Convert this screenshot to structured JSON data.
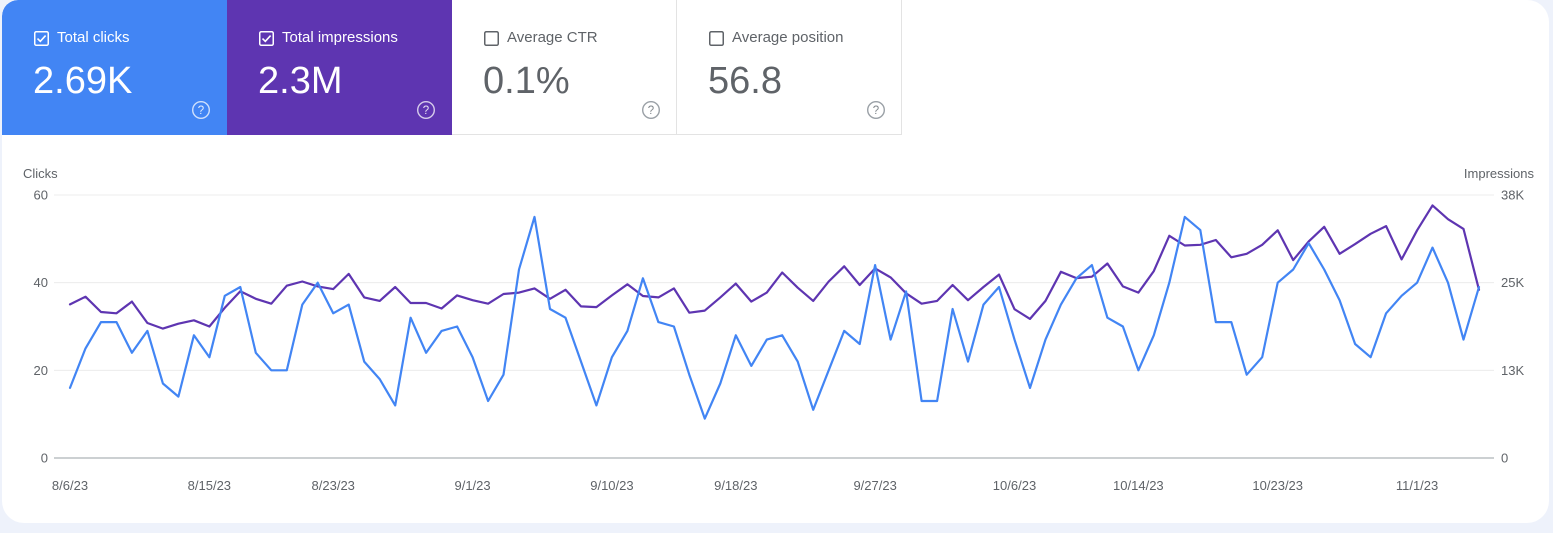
{
  "metrics": [
    {
      "label": "Total clicks",
      "value": "2.69K",
      "checked": true,
      "color": "#4285f4"
    },
    {
      "label": "Total impressions",
      "value": "2.3M",
      "checked": true,
      "color": "#5e35b1"
    },
    {
      "label": "Average CTR",
      "value": "0.1%",
      "checked": false,
      "color": "#ffffff"
    },
    {
      "label": "Average position",
      "value": "56.8",
      "checked": false,
      "color": "#ffffff"
    }
  ],
  "chart_data": {
    "type": "line",
    "ylabel_left": "Clicks",
    "ylabel_right": "Impressions",
    "yticks_left": [
      "0",
      "20",
      "40",
      "60"
    ],
    "yticks_right": [
      "0",
      "13K",
      "25K",
      "38K"
    ],
    "ylim_left": [
      0,
      60
    ],
    "ylim_right": [
      0,
      38000
    ],
    "grid": true,
    "xtick_labels": [
      "8/6/23",
      "8/15/23",
      "8/23/23",
      "9/1/23",
      "9/10/23",
      "9/18/23",
      "9/27/23",
      "10/6/23",
      "10/14/23",
      "10/23/23",
      "11/1/23"
    ],
    "xtick_index": [
      0,
      9,
      17,
      26,
      35,
      43,
      52,
      61,
      69,
      78,
      87
    ],
    "x_start": "8/6/23",
    "x_end": "11/6/23",
    "series": [
      {
        "name": "Clicks",
        "axis": "left",
        "color": "#4285f4",
        "values": [
          16,
          25,
          31,
          31,
          24,
          29,
          17,
          14,
          28,
          23,
          37,
          39,
          24,
          20,
          20,
          35,
          40,
          33,
          35,
          22,
          18,
          12,
          32,
          24,
          29,
          30,
          23,
          13,
          19,
          43,
          55,
          34,
          32,
          22,
          12,
          23,
          29,
          41,
          31,
          30,
          19,
          9,
          17,
          28,
          21,
          27,
          28,
          22,
          11,
          20,
          29,
          26,
          44,
          27,
          38,
          13,
          13,
          34,
          22,
          35,
          39,
          27,
          16,
          27,
          35,
          41,
          44,
          32,
          30,
          20,
          28,
          40,
          55,
          52,
          31,
          31,
          19,
          23,
          40,
          43,
          49,
          43,
          36,
          26,
          23,
          33,
          37,
          40,
          48,
          40,
          27,
          39
        ]
      },
      {
        "name": "Impressions",
        "axis": "right",
        "color": "#5e35b1",
        "values": [
          22200,
          23300,
          21100,
          20900,
          22600,
          19500,
          18700,
          19400,
          19900,
          19000,
          21700,
          24100,
          23000,
          22300,
          24900,
          25500,
          24800,
          24400,
          26600,
          23200,
          22700,
          24700,
          22400,
          22400,
          21600,
          23500,
          22800,
          22300,
          23700,
          23900,
          24500,
          23000,
          24300,
          21900,
          21800,
          23500,
          25100,
          23400,
          23200,
          24500,
          21000,
          21300,
          23200,
          25200,
          22600,
          23900,
          26800,
          24600,
          22700,
          25500,
          27700,
          25000,
          27400,
          26100,
          23800,
          22300,
          22700,
          25000,
          22800,
          24700,
          26500,
          21500,
          20100,
          22700,
          26900,
          26000,
          26200,
          28100,
          24800,
          23900,
          27000,
          32100,
          30700,
          30800,
          31500,
          29000,
          29500,
          30800,
          32900,
          28600,
          31300,
          33400,
          29500,
          30900,
          32400,
          33500,
          28700,
          32900,
          36500,
          34500,
          33100,
          24300
        ]
      }
    ]
  }
}
